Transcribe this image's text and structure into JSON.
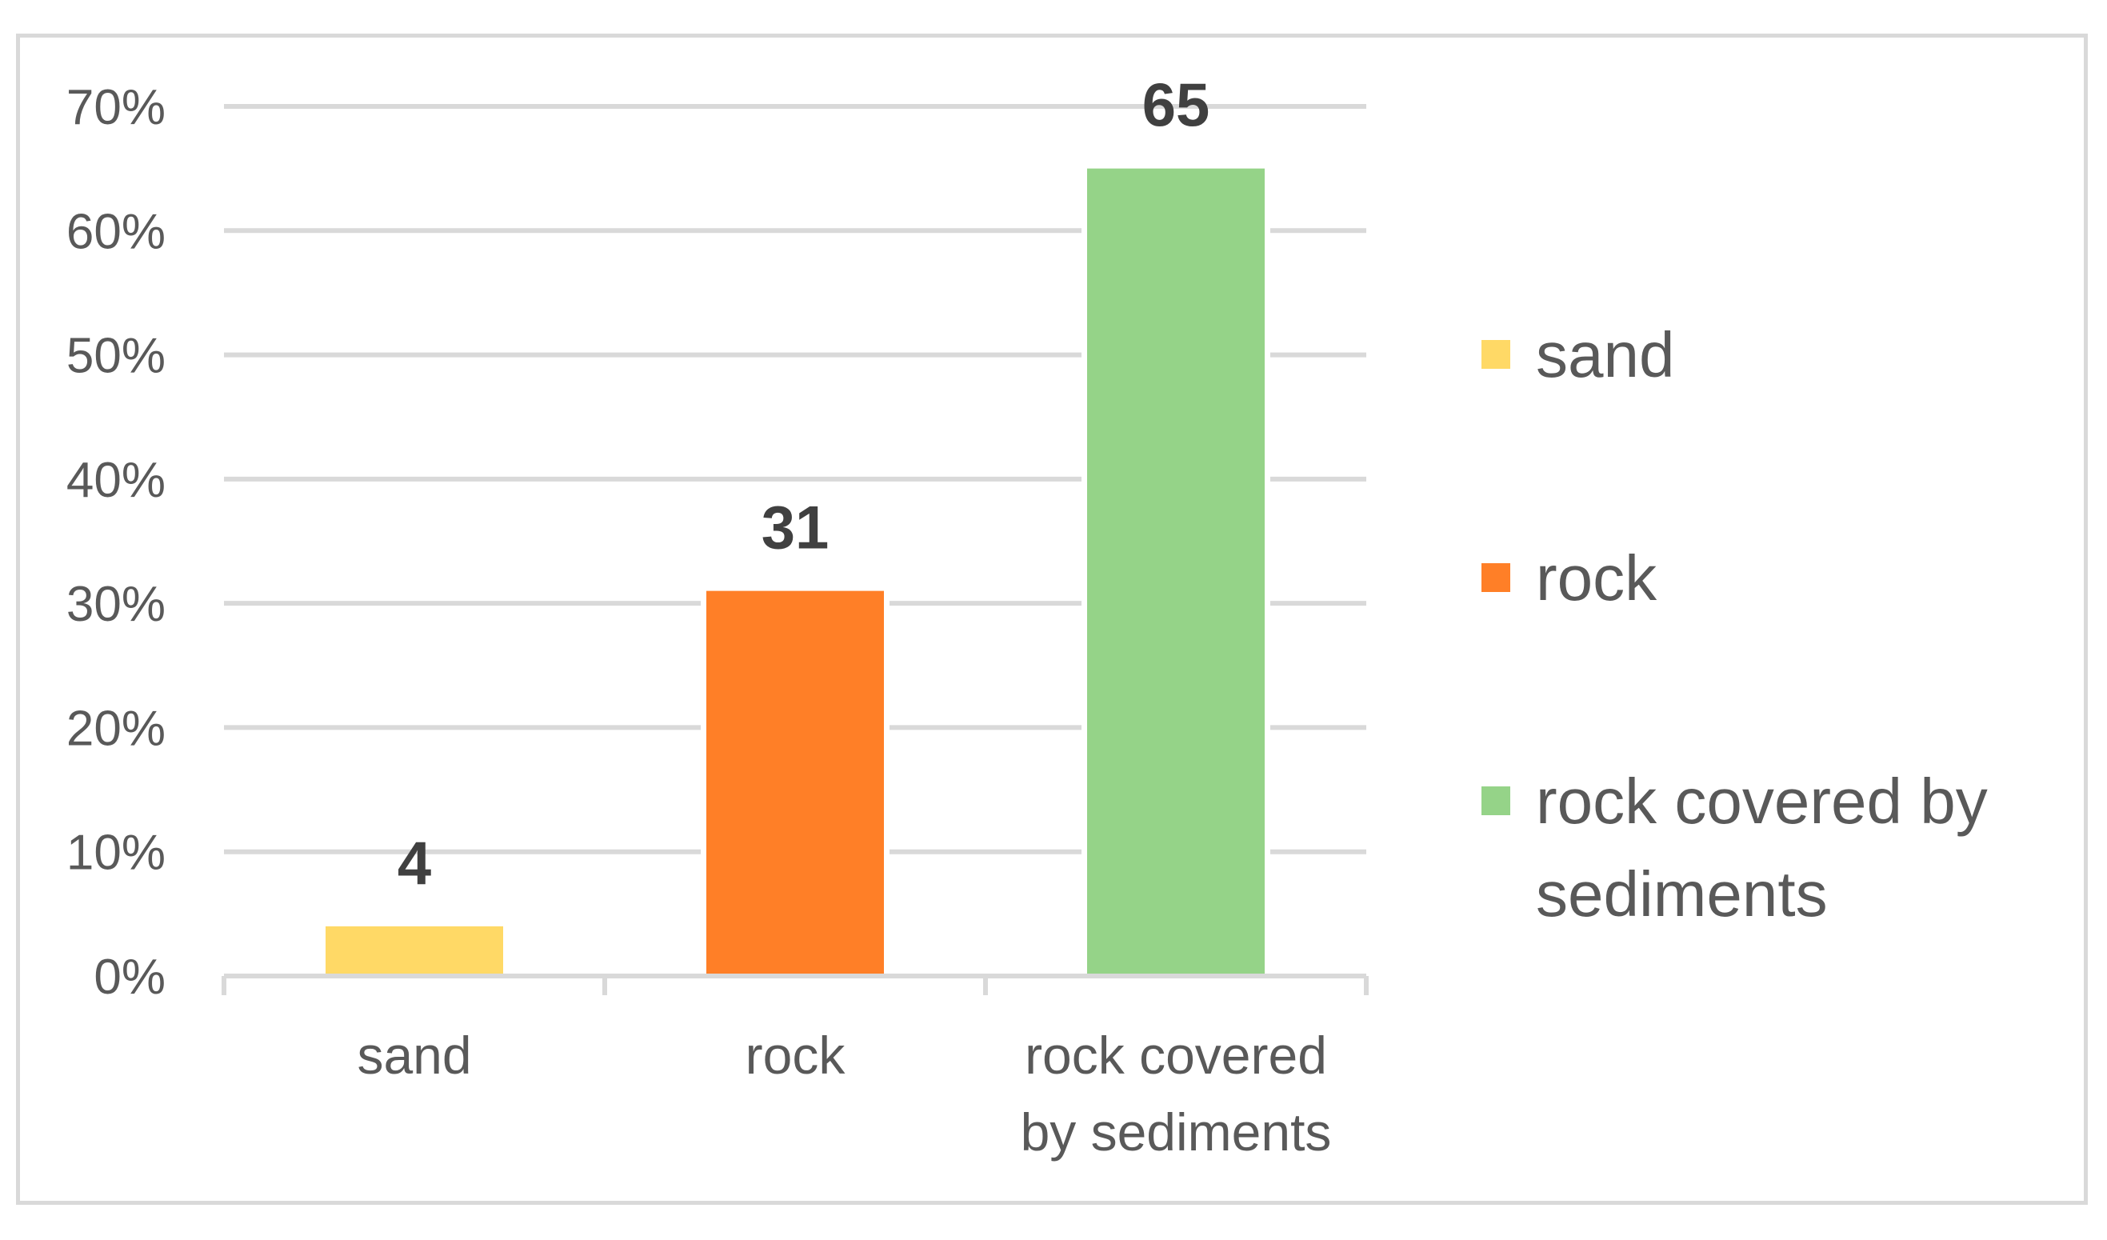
{
  "chart_data": {
    "type": "bar",
    "categories": [
      "sand",
      "rock",
      "rock covered by sediments"
    ],
    "category_label_lines": [
      [
        "sand"
      ],
      [
        "rock"
      ],
      [
        "rock covered",
        "by sediments"
      ]
    ],
    "values": [
      4,
      31,
      65
    ],
    "data_labels": [
      "4",
      "31",
      "65"
    ],
    "colors": [
      "#FFD966",
      "#FF7F27",
      "#95D388"
    ],
    "ylim": [
      0,
      70
    ],
    "y_ticks": [
      0,
      10,
      20,
      30,
      40,
      50,
      60,
      70
    ],
    "y_tick_labels": [
      "0%",
      "10%",
      "20%",
      "30%",
      "40%",
      "50%",
      "60%",
      "70%"
    ],
    "title": "",
    "xlabel": "",
    "ylabel": "",
    "grid": true,
    "legend": {
      "position": "right",
      "entries": [
        {
          "lines": [
            "sand"
          ],
          "color": "#FFD966"
        },
        {
          "lines": [
            "rock"
          ],
          "color": "#FF7F27"
        },
        {
          "lines": [
            "rock covered by",
            "sediments"
          ],
          "color": "#95D388"
        }
      ]
    }
  }
}
